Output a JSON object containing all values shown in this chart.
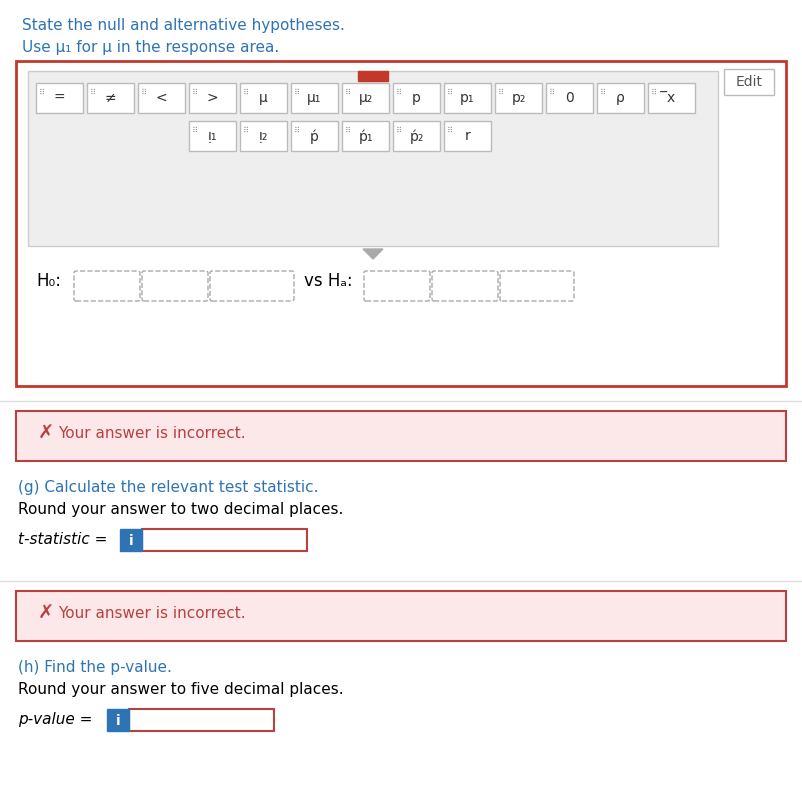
{
  "bg_color": "#ffffff",
  "title_line1": "State the null and alternative hypotheses.",
  "title_line2": "Use μ₁ for μ⁤ in the response area.",
  "title_color": "#2e74b5",
  "section_g_label": "(g) Calculate the relevant test statistic.",
  "section_g_sub": "Round your answer to two decimal places.",
  "t_statistic_label": "t-statistic = ",
  "section_h_label": "(h) Find the p-value.",
  "section_h_sub": "Round your answer to five decimal places.",
  "p_value_label": "p-value = ",
  "incorrect_text": "Your answer is incorrect.",
  "incorrect_bg": "#fce8e8",
  "incorrect_border": "#b94040",
  "incorrect_text_color": "#b94040",
  "edit_btn_text": "Edit",
  "outer_box_border": "#c0392b",
  "toolbar_bg": "#eeeeee",
  "toolbar_border": "#cccccc",
  "btn_bg": "#ffffff",
  "btn_border": "#bbbbbb",
  "btn_text_color": "#333333",
  "dot_color": "#999999",
  "red_tab_color": "#c0392b",
  "arrow_color": "#aaaaaa",
  "dashed_border": "#aaaaaa",
  "input_border": "#b94040",
  "input_bg": "#ffffff",
  "info_btn_bg": "#2e74b5",
  "info_btn_text": "i",
  "info_btn_color": "#ffffff",
  "sep_line_color": "#dddddd",
  "toolbar_buttons_row1": [
    "=",
    "≠",
    "<",
    ">",
    "μ",
    "μ₁",
    "μ₂",
    "p",
    "p₁",
    "p₂",
    "0",
    "ρ",
    "̅x"
  ],
  "toolbar_buttons_row2": [
    "ᴉ₁",
    "ᴉ₂",
    "ṕ",
    "ṕ₁",
    "ṕ₂",
    "r"
  ],
  "ho_label": "H₀:",
  "vs_ha_label": "vs Hₐ:",
  "black": "#000000"
}
